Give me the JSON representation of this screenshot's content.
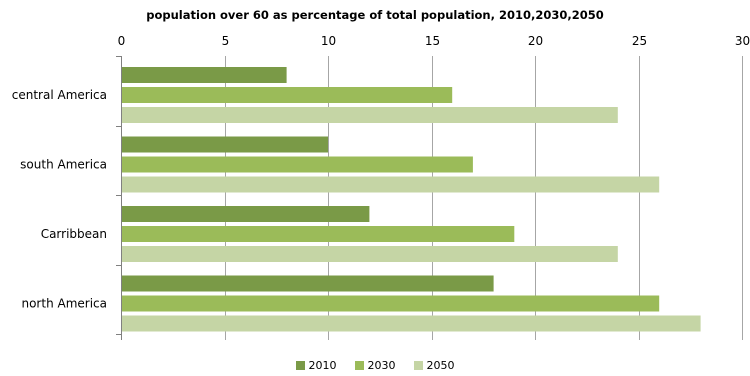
{
  "chart_data": {
    "type": "bar",
    "orientation": "horizontal",
    "title": "population over 60 as percentage  of total population,  2010,2030,2050",
    "categories": [
      "central America",
      "south America",
      "Carribbean",
      "north America"
    ],
    "series": [
      {
        "name": "2010",
        "color": "#7a9a47",
        "values": [
          8,
          10,
          12,
          18
        ]
      },
      {
        "name": "2030",
        "color": "#9bbb59",
        "values": [
          16,
          17,
          19,
          26
        ]
      },
      {
        "name": "2050",
        "color": "#c5d5a5",
        "values": [
          24,
          26,
          24,
          28
        ]
      }
    ],
    "x_axis": {
      "position": "top",
      "range": [
        0,
        30
      ],
      "ticks": [
        "0",
        "5",
        "10",
        "15",
        "20",
        "25",
        "30"
      ]
    },
    "grid": true,
    "legend_position": "bottom"
  }
}
